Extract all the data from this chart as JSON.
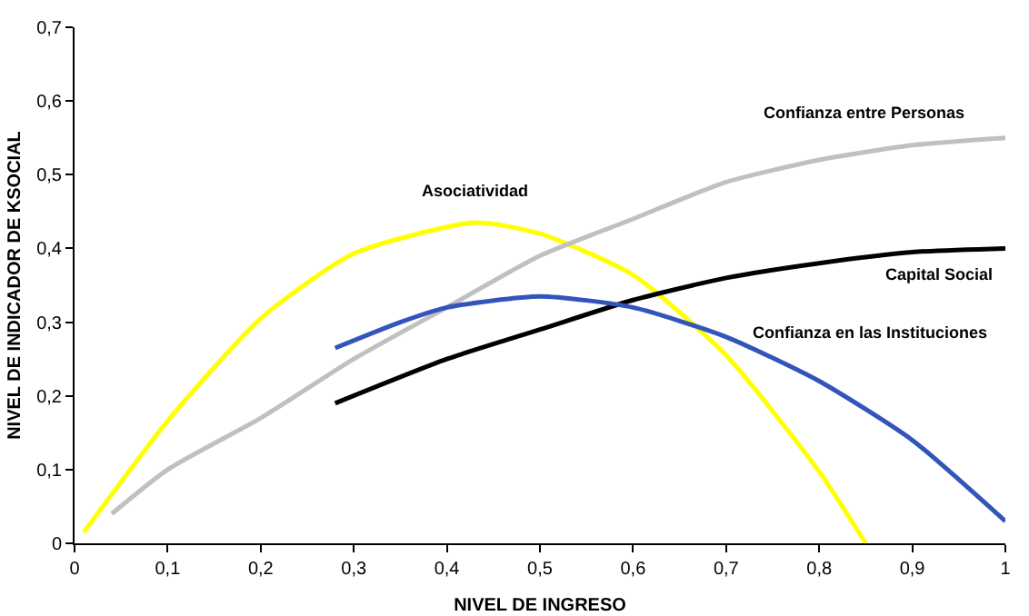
{
  "chart_data": {
    "type": "line",
    "xlabel": "NIVEL DE INGRESO",
    "ylabel": "NIVEL DE INDICADOR DE KSOCIAL",
    "xlim": [
      0,
      1
    ],
    "ylim": [
      0,
      0.7
    ],
    "xticks": [
      0,
      {
        "value": 0.1,
        "label": "0,1"
      },
      {
        "value": 0.2,
        "label": "0,2"
      },
      {
        "value": 0.3,
        "label": "0,3"
      },
      {
        "value": 0.4,
        "label": "0,4"
      },
      {
        "value": 0.5,
        "label": "0,5"
      },
      {
        "value": 0.6,
        "label": "0,6"
      },
      {
        "value": 0.7,
        "label": "0,7"
      },
      {
        "value": 0.8,
        "label": "0,8"
      },
      {
        "value": 0.9,
        "label": "0,9"
      },
      1
    ],
    "yticks": [
      0,
      {
        "value": 0.1,
        "label": "0,1"
      },
      {
        "value": 0.2,
        "label": "0,2"
      },
      {
        "value": 0.3,
        "label": "0,3"
      },
      {
        "value": 0.4,
        "label": "0,4"
      },
      {
        "value": 0.5,
        "label": "0,5"
      },
      {
        "value": 0.6,
        "label": "0,6"
      },
      {
        "value": 0.7,
        "label": "0,7"
      }
    ],
    "grid": false,
    "legend": false,
    "marker": "none",
    "line_style": "solid",
    "series": [
      {
        "name": "Asociatividad",
        "color": "#ffff00",
        "x": [
          0.01,
          0.1,
          0.2,
          0.3,
          0.43,
          0.5,
          0.6,
          0.7,
          0.8,
          0.85
        ],
        "values": [
          0.015,
          0.166,
          0.305,
          0.393,
          0.435,
          0.42,
          0.364,
          0.255,
          0.097,
          0
        ]
      },
      {
        "name": "Confianza entre Personas",
        "color": "#c0c0c0",
        "x": [
          0.04,
          0.1,
          0.2,
          0.3,
          0.4,
          0.5,
          0.6,
          0.7,
          0.8,
          0.9,
          1
        ],
        "values": [
          0.04,
          0.1,
          0.17,
          0.25,
          0.32,
          0.39,
          0.44,
          0.49,
          0.52,
          0.54,
          0.55
        ]
      },
      {
        "name": "Capital Social",
        "color": "#000000",
        "x": [
          0.28,
          0.4,
          0.5,
          0.6,
          0.7,
          0.8,
          0.9,
          1
        ],
        "values": [
          0.19,
          0.25,
          0.29,
          0.33,
          0.36,
          0.38,
          0.395,
          0.4
        ]
      },
      {
        "name": "Confianza en las Instituciones",
        "color": "#3355bb",
        "x": [
          0.28,
          0.35,
          0.4,
          0.5,
          0.6,
          0.7,
          0.8,
          0.9,
          1
        ],
        "values": [
          0.265,
          0.3,
          0.32,
          0.335,
          0.32,
          0.28,
          0.22,
          0.14,
          0.03
        ]
      }
    ]
  }
}
